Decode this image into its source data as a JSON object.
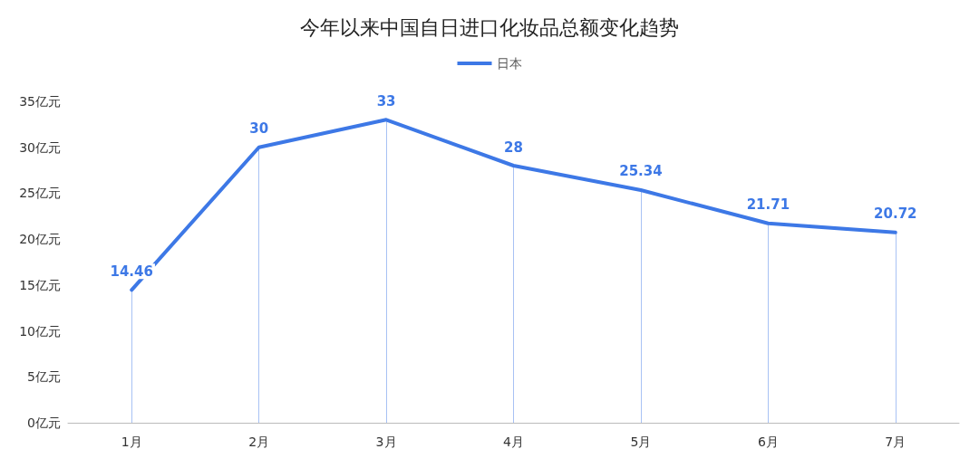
{
  "chart_data": {
    "type": "line",
    "title": "今年以来中国自日进口化妆品总额变化趋势",
    "categories": [
      "1月",
      "2月",
      "3月",
      "4月",
      "5月",
      "6月",
      "7月"
    ],
    "series": [
      {
        "name": "日本",
        "color": "#3d78e6",
        "values": [
          14.46,
          30,
          33,
          28,
          25.34,
          21.71,
          20.72
        ]
      }
    ],
    "ylim": [
      0,
      35
    ],
    "yticks": [
      {
        "value": 0,
        "label": "0亿元"
      },
      {
        "value": 5,
        "label": "5亿元"
      },
      {
        "value": 10,
        "label": "10亿元"
      },
      {
        "value": 15,
        "label": "15亿元"
      },
      {
        "value": 20,
        "label": "20亿元"
      },
      {
        "value": 25,
        "label": "25亿元"
      },
      {
        "value": 30,
        "label": "30亿元"
      },
      {
        "value": 35,
        "label": "35亿元"
      }
    ],
    "grid": "x",
    "legend": "top",
    "marker": "none",
    "line_style": "solid",
    "data_labels": true
  }
}
